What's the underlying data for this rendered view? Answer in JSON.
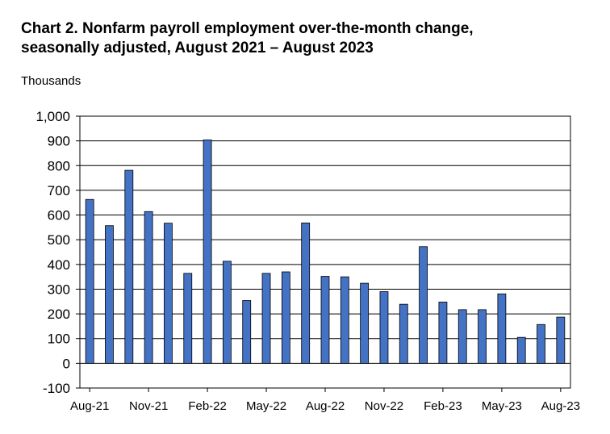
{
  "chart_data": {
    "type": "bar",
    "title": [
      "Chart 2. Nonfarm payroll employment over-the-month change,",
      "seasonally adjusted, August 2021 – August 2023"
    ],
    "ylabel": "Thousands",
    "xlabel": "",
    "ylim": [
      -100,
      1000
    ],
    "yticks": [
      -100,
      0,
      100,
      200,
      300,
      400,
      500,
      600,
      700,
      800,
      900,
      1000
    ],
    "ytick_labels": [
      "-100",
      "0",
      "100",
      "200",
      "300",
      "400",
      "500",
      "600",
      "700",
      "800",
      "900",
      "1,000"
    ],
    "grid": true,
    "bar_color": "#4472C4",
    "categories": [
      "Aug-21",
      "Sep-21",
      "Oct-21",
      "Nov-21",
      "Dec-21",
      "Jan-22",
      "Feb-22",
      "Mar-22",
      "Apr-22",
      "May-22",
      "Jun-22",
      "Jul-22",
      "Aug-22",
      "Sep-22",
      "Oct-22",
      "Nov-22",
      "Dec-22",
      "Jan-23",
      "Feb-23",
      "Mar-23",
      "Apr-23",
      "May-23",
      "Jun-23",
      "Jul-23",
      "Aug-23"
    ],
    "xtick_labels": [
      "Aug-21",
      "Nov-21",
      "Feb-22",
      "May-22",
      "Aug-22",
      "Nov-22",
      "Feb-23",
      "May-23",
      "Aug-23"
    ],
    "values": [
      663,
      557,
      781,
      614,
      567,
      364,
      904,
      413,
      254,
      364,
      370,
      568,
      352,
      350,
      324,
      290,
      239,
      472,
      248,
      217,
      217,
      281,
      105,
      157,
      187
    ]
  }
}
